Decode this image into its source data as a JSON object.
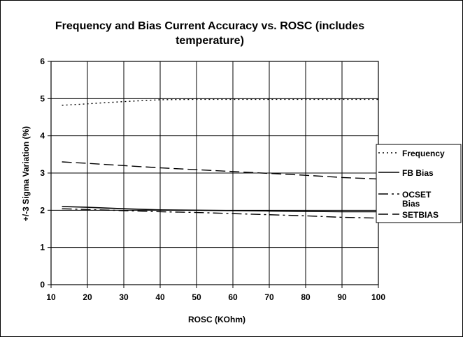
{
  "chart_data": {
    "type": "line",
    "title": "Frequency and Bias Current Accuracy vs. ROSC (includes temperature)",
    "title_lines": [
      "Frequency and Bias Current Accuracy vs. ROSC (includes",
      "temperature)"
    ],
    "xlabel": "ROSC (KOhm)",
    "ylabel": "+/-3 Sigma Variation (%)",
    "xlim": [
      10,
      100
    ],
    "ylim": [
      0,
      6
    ],
    "xticks": [
      "10",
      "20",
      "30",
      "40",
      "50",
      "60",
      "70",
      "80",
      "90",
      "100"
    ],
    "yticks": [
      "0",
      "1",
      "2",
      "3",
      "4",
      "5",
      "6"
    ],
    "grid": true,
    "legend_position": "right",
    "series": [
      {
        "name": "Frequency",
        "style": "dotted",
        "color": "#000000",
        "points": [
          [
            13,
            4.82
          ],
          [
            20,
            4.86
          ],
          [
            30,
            4.92
          ],
          [
            40,
            4.97
          ],
          [
            50,
            4.98
          ],
          [
            60,
            4.98
          ],
          [
            70,
            4.98
          ],
          [
            80,
            4.98
          ],
          [
            90,
            4.98
          ],
          [
            100,
            4.98
          ]
        ]
      },
      {
        "name": "FB Bias",
        "style": "solid",
        "color": "#000000",
        "points": [
          [
            13,
            2.1
          ],
          [
            20,
            2.08
          ],
          [
            30,
            2.04
          ],
          [
            40,
            2.01
          ],
          [
            50,
            2.0
          ],
          [
            60,
            1.99
          ],
          [
            70,
            1.98
          ],
          [
            80,
            1.97
          ],
          [
            90,
            1.96
          ],
          [
            100,
            1.96
          ]
        ]
      },
      {
        "name": "OCSET Bias",
        "style": "dash-dot",
        "color": "#000000",
        "points": [
          [
            13,
            2.04
          ],
          [
            20,
            2.02
          ],
          [
            30,
            1.99
          ],
          [
            40,
            1.96
          ],
          [
            50,
            1.94
          ],
          [
            60,
            1.91
          ],
          [
            70,
            1.88
          ],
          [
            80,
            1.85
          ],
          [
            90,
            1.81
          ],
          [
            100,
            1.79
          ]
        ]
      },
      {
        "name": "SETBIAS",
        "style": "long-dash",
        "color": "#000000",
        "points": [
          [
            13,
            3.3
          ],
          [
            20,
            3.26
          ],
          [
            30,
            3.2
          ],
          [
            40,
            3.14
          ],
          [
            50,
            3.09
          ],
          [
            60,
            3.04
          ],
          [
            70,
            2.99
          ],
          [
            80,
            2.94
          ],
          [
            90,
            2.88
          ],
          [
            100,
            2.84
          ]
        ]
      }
    ]
  }
}
